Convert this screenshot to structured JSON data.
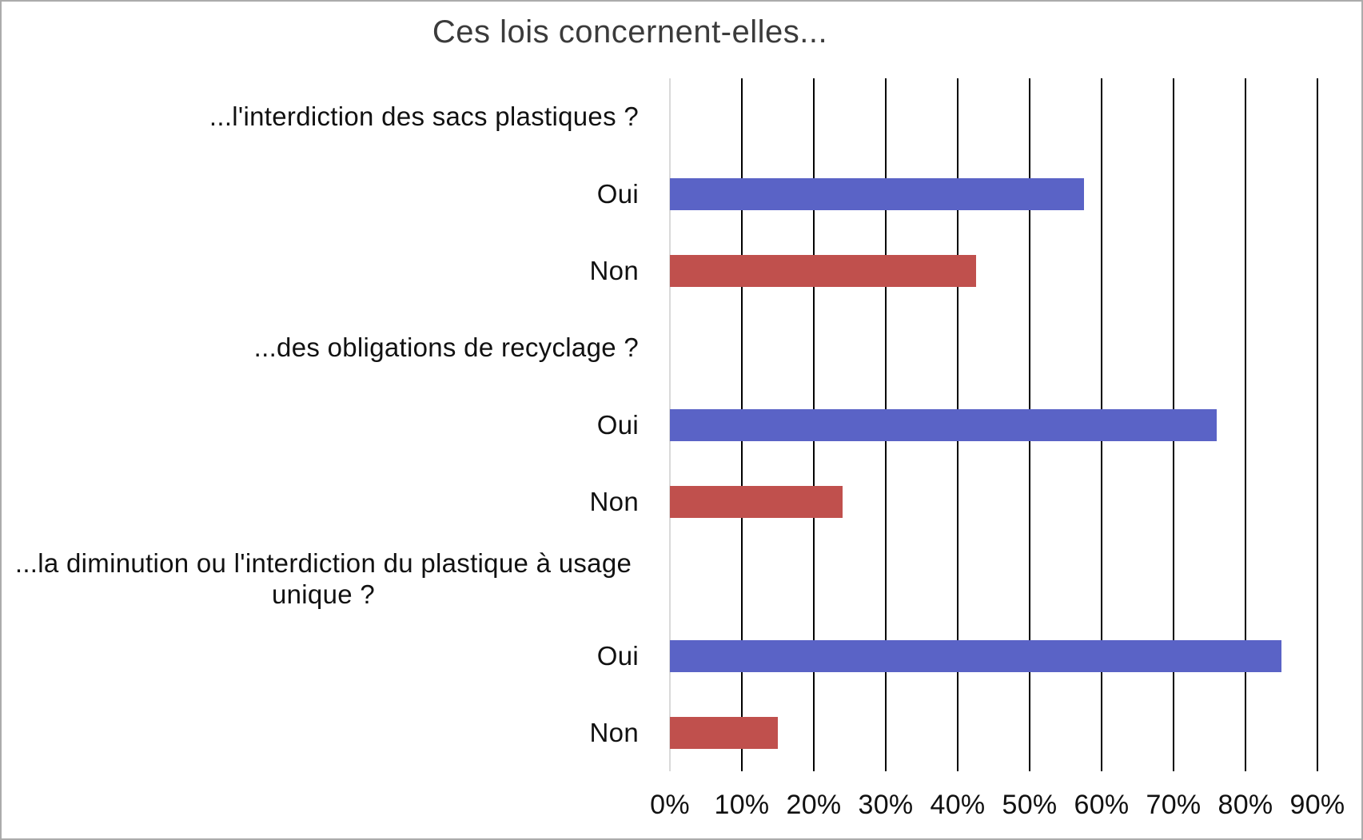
{
  "chart_data": {
    "type": "bar",
    "orientation": "horizontal",
    "title": "Ces lois concernent-elles...",
    "xlabel": "",
    "ylabel": "",
    "xlim": [
      0,
      90
    ],
    "x_tick_labels": [
      "0%",
      "10%",
      "20%",
      "30%",
      "40%",
      "50%",
      "60%",
      "70%",
      "80%",
      "90%"
    ],
    "gridlines": "vertical-major",
    "legend": "none",
    "colors": {
      "oui_bar": "#5A63C6",
      "non_bar": "#C0504D",
      "gridline": "#000000",
      "zero_axis_line": "#D9D9D9",
      "title_text": "#3B3B3B",
      "label_text": "#111111",
      "frame_border": "#ABABAB"
    },
    "rows": [
      {
        "kind": "header",
        "label": "...l'interdiction des sacs plastiques ?"
      },
      {
        "kind": "bar",
        "label": "Oui",
        "value": 57.5,
        "series": "oui"
      },
      {
        "kind": "bar",
        "label": "Non",
        "value": 42.5,
        "series": "non"
      },
      {
        "kind": "header",
        "label": "...des obligations de recyclage ?"
      },
      {
        "kind": "bar",
        "label": "Oui",
        "value": 76,
        "series": "oui"
      },
      {
        "kind": "bar",
        "label": "Non",
        "value": 24,
        "series": "non"
      },
      {
        "kind": "header",
        "label": "...la diminution ou l'interdiction du plastique à usage unique ?",
        "wrap": true
      },
      {
        "kind": "bar",
        "label": "Oui",
        "value": 85,
        "series": "oui"
      },
      {
        "kind": "bar",
        "label": "Non",
        "value": 15,
        "series": "non"
      }
    ]
  }
}
